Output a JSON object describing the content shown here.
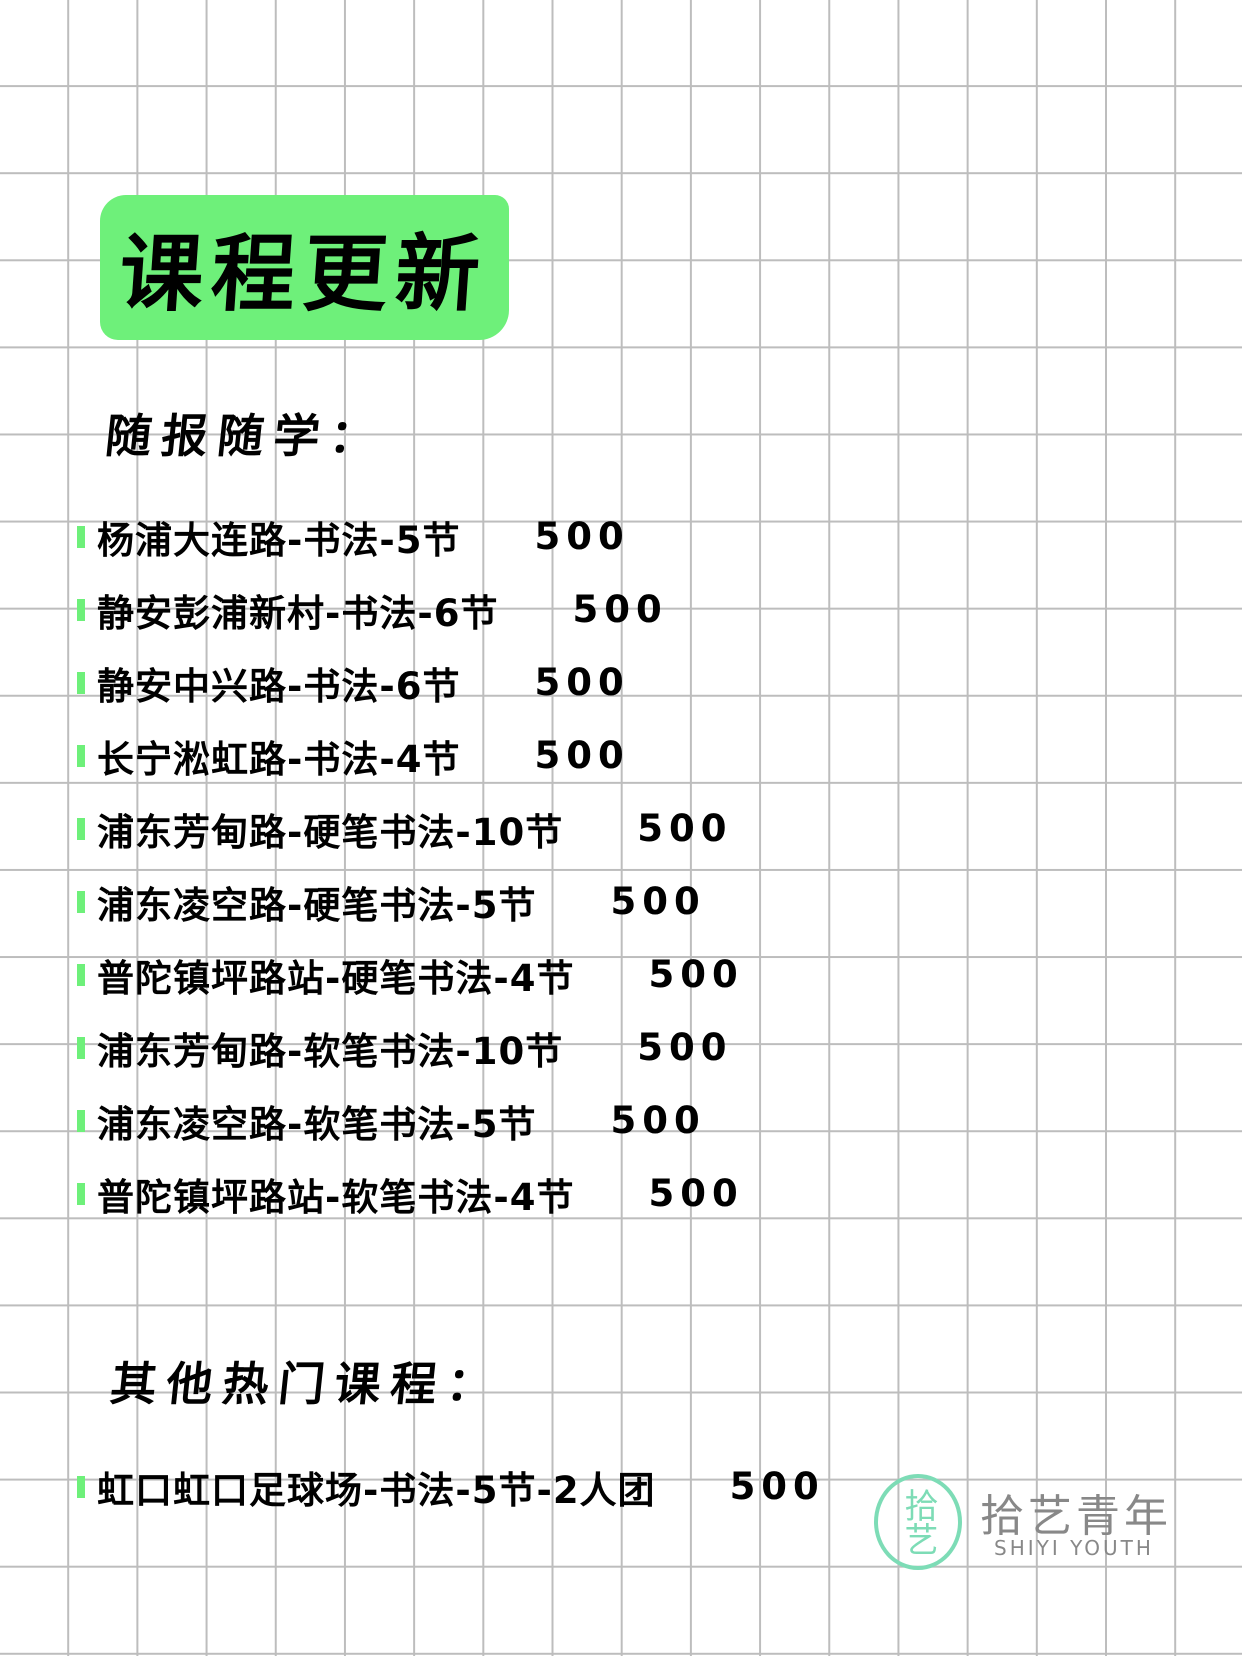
{
  "title": "课程更新",
  "section1": {
    "heading": "随报随学：",
    "items": [
      {
        "name": "杨浦大连路-书法-5节",
        "price": "500"
      },
      {
        "name": "静安彭浦新村-书法-6节",
        "price": "500"
      },
      {
        "name": "静安中兴路-书法-6节",
        "price": "500"
      },
      {
        "name": "长宁淞虹路-书法-4节",
        "price": "500"
      },
      {
        "name": "浦东芳甸路-硬笔书法-10节",
        "price": "500"
      },
      {
        "name": "浦东凌空路-硬笔书法-5节",
        "price": "500"
      },
      {
        "name": "普陀镇坪路站-硬笔书法-4节",
        "price": "500"
      },
      {
        "name": "浦东芳甸路-软笔书法-10节",
        "price": "500"
      },
      {
        "name": "浦东凌空路-软笔书法-5节",
        "price": "500"
      },
      {
        "name": "普陀镇坪路站-软笔书法-4节",
        "price": "500"
      }
    ]
  },
  "section2": {
    "heading": "其他热门课程：",
    "items": [
      {
        "name": "虹口虹口足球场-书法-5节-2人团",
        "price": "500"
      }
    ]
  },
  "logo": {
    "mark": "拾艺",
    "name_cn": "拾艺青年",
    "name_en": "SHIYI YOUTH"
  },
  "colors": {
    "accent": "#6ef07a",
    "logo": "#7ddcb6",
    "grid": "#bdbdbd"
  }
}
